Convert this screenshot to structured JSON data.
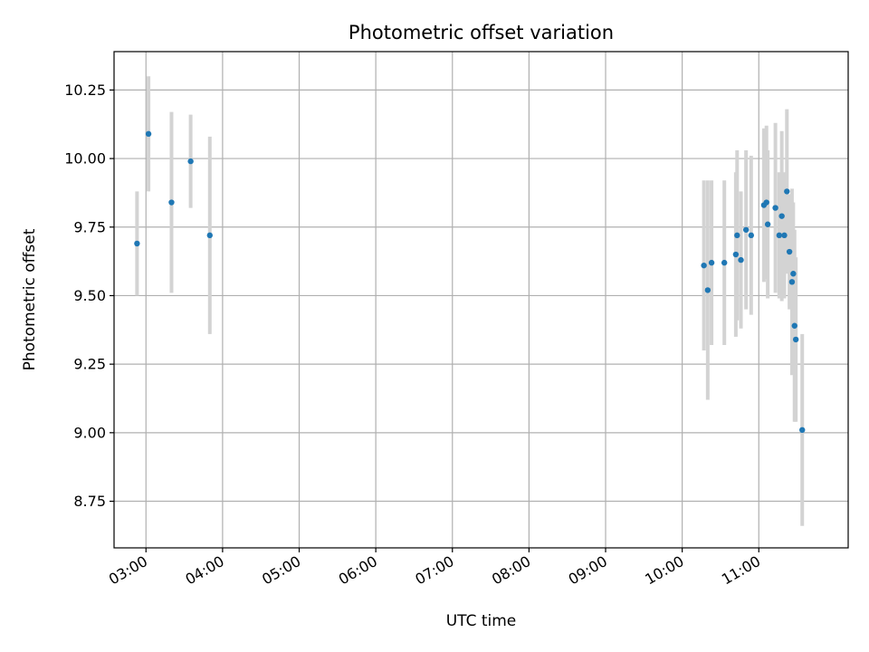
{
  "chart_data": {
    "type": "scatter",
    "title": "Photometric offset variation",
    "xlabel": "UTC time",
    "ylabel": "Photometric offset",
    "x_axis_type": "time",
    "xlim": [
      "02:35",
      "12:10"
    ],
    "ylim": [
      8.58,
      10.39
    ],
    "x_ticks": [
      "03:00",
      "04:00",
      "05:00",
      "06:00",
      "07:00",
      "08:00",
      "09:00",
      "10:00",
      "11:00"
    ],
    "y_ticks": [
      8.75,
      9.0,
      9.25,
      9.5,
      9.75,
      10.0,
      10.25
    ],
    "y_tick_labels": [
      "8.75",
      "9.00",
      "9.25",
      "9.50",
      "9.75",
      "10.00",
      "10.25"
    ],
    "grid": true,
    "point_color": "#1f77b4",
    "errorbar_color": "#d3d3d3",
    "series": [
      {
        "points": [
          {
            "x": "02:53",
            "y": 9.69,
            "err": 0.19
          },
          {
            "x": "03:02",
            "y": 10.09,
            "err": 0.21
          },
          {
            "x": "03:20",
            "y": 9.84,
            "err": 0.33
          },
          {
            "x": "03:35",
            "y": 9.99,
            "err": 0.17
          },
          {
            "x": "03:50",
            "y": 9.72,
            "err": 0.36
          },
          {
            "x": "10:17",
            "y": 9.61,
            "err": 0.31
          },
          {
            "x": "10:20",
            "y": 9.52,
            "err": 0.4
          },
          {
            "x": "10:23",
            "y": 9.62,
            "err": 0.3
          },
          {
            "x": "10:33",
            "y": 9.62,
            "err": 0.3
          },
          {
            "x": "10:42",
            "y": 9.65,
            "err": 0.3
          },
          {
            "x": "10:43",
            "y": 9.72,
            "err": 0.31
          },
          {
            "x": "10:46",
            "y": 9.63,
            "err": 0.25
          },
          {
            "x": "10:50",
            "y": 9.74,
            "err": 0.29
          },
          {
            "x": "10:54",
            "y": 9.72,
            "err": 0.29
          },
          {
            "x": "11:04",
            "y": 9.83,
            "err": 0.28
          },
          {
            "x": "11:06",
            "y": 9.84,
            "err": 0.28
          },
          {
            "x": "11:07",
            "y": 9.76,
            "err": 0.27
          },
          {
            "x": "11:13",
            "y": 9.82,
            "err": 0.31
          },
          {
            "x": "11:16",
            "y": 9.72,
            "err": 0.23
          },
          {
            "x": "11:18",
            "y": 9.79,
            "err": 0.31
          },
          {
            "x": "11:20",
            "y": 9.72,
            "err": 0.23
          },
          {
            "x": "11:22",
            "y": 9.88,
            "err": 0.3
          },
          {
            "x": "11:24",
            "y": 9.66,
            "err": 0.21
          },
          {
            "x": "11:26",
            "y": 9.55,
            "err": 0.34
          },
          {
            "x": "11:27",
            "y": 9.58,
            "err": 0.26
          },
          {
            "x": "11:28",
            "y": 9.39,
            "err": 0.35
          },
          {
            "x": "11:29",
            "y": 9.34,
            "err": 0.3
          },
          {
            "x": "11:34",
            "y": 9.01,
            "err": 0.35
          }
        ]
      }
    ]
  }
}
